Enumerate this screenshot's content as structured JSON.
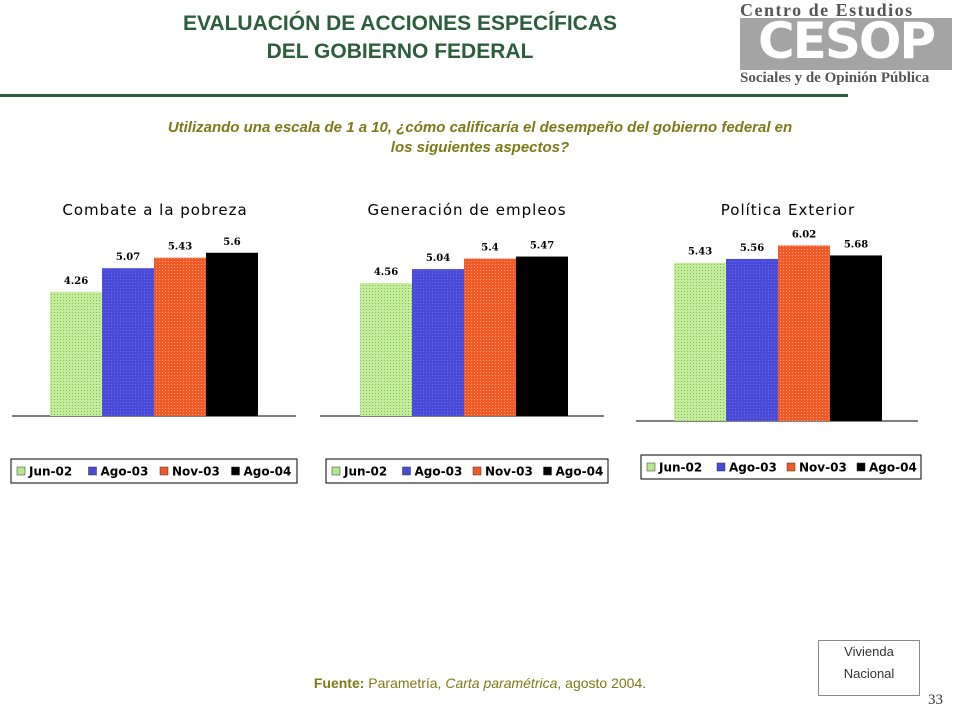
{
  "header": {
    "title_line1": "EVALUACIÓN DE ACCIONES ESPECÍFICAS",
    "title_line2": "DEL GOBIERNO FEDERAL",
    "logo_top": "Centro de Estudios",
    "logo_mark": "CESOP",
    "logo_bottom": "Sociales y de Opinión Pública"
  },
  "question": {
    "line1": "Utilizando una escala de 1 a 10, ¿cómo calificaría el desempeño del gobierno federal en",
    "line2": "los siguientes aspectos?"
  },
  "colors": {
    "jun02": "#b8e68c",
    "ago03": "#4a4ad8",
    "nov03": "#f05a28",
    "ago04": "#000000",
    "title_green": "#2d5d3c",
    "question_olive": "#7c7a18"
  },
  "chart_data": [
    {
      "type": "bar",
      "title": "Combate a la pobreza",
      "categories": [
        "Jun-02",
        "Ago-03",
        "Nov-03",
        "Ago-04"
      ],
      "values": [
        4.26,
        5.07,
        5.43,
        5.6
      ],
      "labels": [
        "4.26",
        "5.07",
        "5.43",
        "5.6"
      ],
      "legend_position": "bottom"
    },
    {
      "type": "bar",
      "title": "Generación de empleos",
      "categories": [
        "Jun-02",
        "Ago-03",
        "Nov-03",
        "Ago-04"
      ],
      "values": [
        4.56,
        5.04,
        5.4,
        5.47
      ],
      "labels": [
        "4.56",
        "5.04",
        "5.4",
        "5.47"
      ],
      "legend_position": "bottom"
    },
    {
      "type": "bar",
      "title": "Política Exterior",
      "categories": [
        "Jun-02",
        "Ago-03",
        "Nov-03",
        "Ago-04"
      ],
      "values": [
        5.43,
        5.56,
        6.02,
        5.68
      ],
      "labels": [
        "5.43",
        "5.56",
        "6.02",
        "5.68"
      ],
      "legend_position": "bottom"
    }
  ],
  "footer": {
    "source_label": "Fuente:",
    "source_pre": " Parametría, ",
    "source_pub": "Carta paramétrica",
    "source_post": ", agosto 2004.",
    "badge_line1": "Vivienda",
    "badge_line2": "Nacional",
    "page_number": "33"
  }
}
